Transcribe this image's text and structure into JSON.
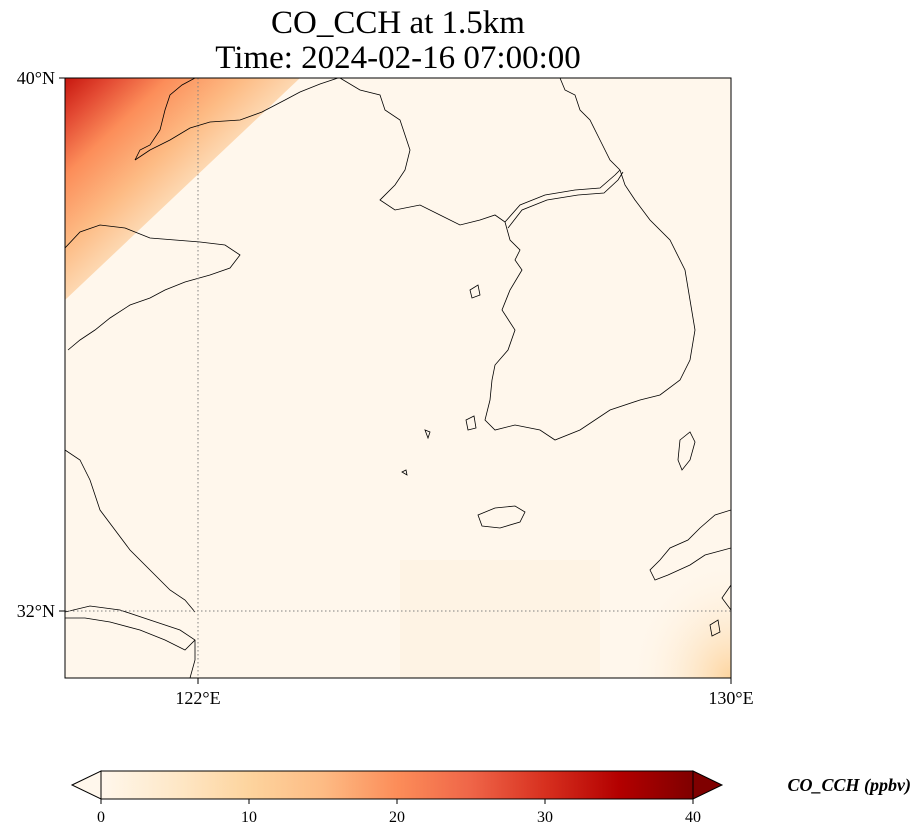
{
  "map": {
    "title_line1": "CO_CCH at 1.5km",
    "title_line2": "Time: 2024-02-16 07:00:00",
    "variable": "CO_CCH",
    "units": "ppbv",
    "lat_labels": [
      "40°N",
      "32°N"
    ],
    "lon_labels": [
      "122°E",
      "130°E"
    ],
    "extent": {
      "lon_min": 120,
      "lon_max": 130,
      "lat_min": 31,
      "lat_max": 40
    },
    "gridlines": {
      "lons": [
        122,
        130
      ],
      "lats": [
        32,
        40
      ],
      "style": "dotted gray"
    }
  },
  "colorbar": {
    "label": "CO_CCH (ppbv)",
    "ticks": [
      "0",
      "10",
      "20",
      "30",
      "40"
    ],
    "vmin": 0,
    "vmax": 40,
    "colormap": "OrRd",
    "extend": "both",
    "colors": [
      "#fff7ec",
      "#fee8c8",
      "#fdd49e",
      "#fdbb84",
      "#fc8d59",
      "#ef6548",
      "#d7301f",
      "#b30000",
      "#7f0000"
    ]
  },
  "field_colors": {
    "background": "#fff7ec",
    "high": "#c7170f",
    "mid": "#fc8d59",
    "low": "#fdd49e"
  }
}
